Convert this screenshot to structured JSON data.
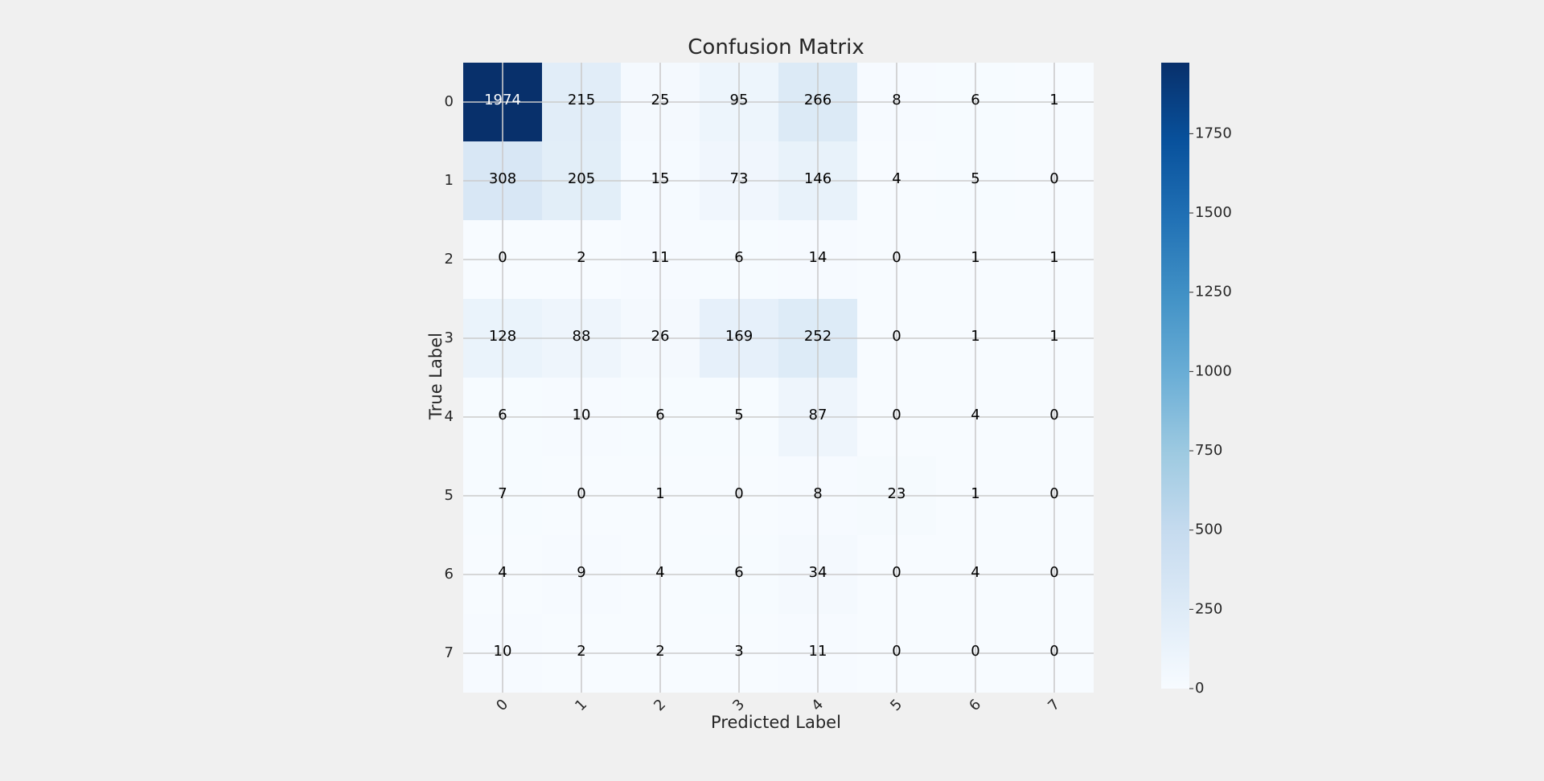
{
  "chart_data": {
    "type": "heatmap",
    "title": "Confusion Matrix",
    "xlabel": "Predicted Label",
    "ylabel": "True Label",
    "x_categories": [
      "0",
      "1",
      "2",
      "3",
      "4",
      "5",
      "6",
      "7"
    ],
    "y_categories": [
      "0",
      "1",
      "2",
      "3",
      "4",
      "5",
      "6",
      "7"
    ],
    "matrix": [
      [
        1974,
        215,
        25,
        95,
        266,
        8,
        6,
        1
      ],
      [
        308,
        205,
        15,
        73,
        146,
        4,
        5,
        0
      ],
      [
        0,
        2,
        11,
        6,
        14,
        0,
        1,
        1
      ],
      [
        128,
        88,
        26,
        169,
        252,
        0,
        1,
        1
      ],
      [
        6,
        10,
        6,
        5,
        87,
        0,
        4,
        0
      ],
      [
        7,
        0,
        1,
        0,
        8,
        23,
        1,
        0
      ],
      [
        4,
        9,
        4,
        6,
        34,
        0,
        4,
        0
      ],
      [
        10,
        2,
        2,
        3,
        11,
        0,
        0,
        0
      ]
    ],
    "colormap": "Blues",
    "value_range": [
      0,
      1974
    ],
    "colorbar_ticks": [
      0,
      250,
      500,
      750,
      1000,
      1250,
      1500,
      1750
    ],
    "grid": true
  },
  "colors": {
    "background": "#f0f0f0",
    "grid": "#cbcbcb",
    "text": "#262626",
    "light_cell_text": "#ffffff",
    "dark_cell_text": "#000000"
  }
}
